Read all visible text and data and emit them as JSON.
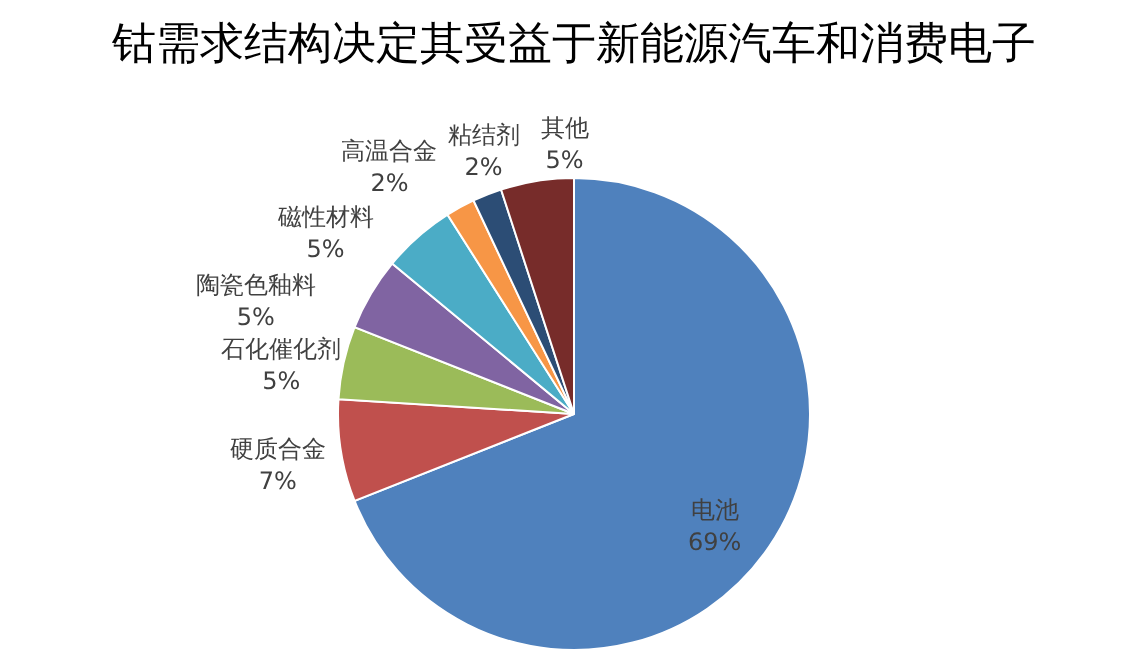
{
  "chart_data": {
    "type": "pie",
    "title": "钴需求结构决定其受益于新能源汽车和消费电子",
    "categories": [
      "电池",
      "硬质合金",
      "石化催化剂",
      "陶瓷色釉料",
      "磁性材料",
      "高温合金",
      "粘结剂",
      "其他"
    ],
    "values": [
      69,
      7,
      5,
      5,
      5,
      2,
      2,
      5
    ],
    "colors": [
      "#4f81bd",
      "#c0504d",
      "#9bbb59",
      "#8064a2",
      "#4bacc6",
      "#f79646",
      "#2c4d75",
      "#772c2a"
    ],
    "value_labels": [
      "69%",
      "7%",
      "5%",
      "5%",
      "5%",
      "2%",
      "2%",
      "5%"
    ]
  }
}
